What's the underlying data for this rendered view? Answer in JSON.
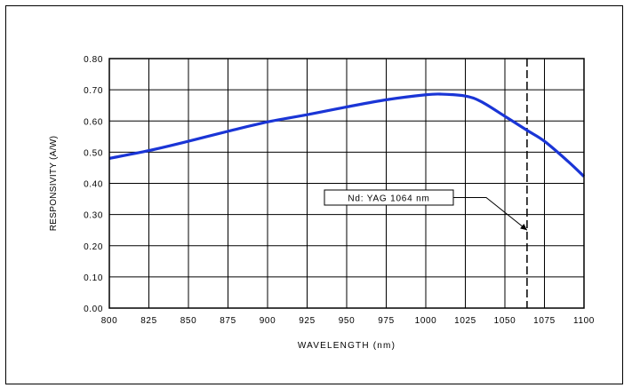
{
  "chart_data": {
    "type": "line",
    "title": "",
    "xlabel": "WAVELENGTH (nm)",
    "ylabel": "RESPONSIVITY (A/W)",
    "xlim": [
      800,
      1100
    ],
    "ylim": [
      0,
      0.8
    ],
    "xticks": [
      "800",
      "825",
      "850",
      "875",
      "900",
      "925",
      "950",
      "975",
      "1000",
      "1025",
      "1050",
      "1075",
      "1100"
    ],
    "yticks": [
      "0.00",
      "0.10",
      "0.20",
      "0.30",
      "0.40",
      "0.50",
      "0.60",
      "0.70",
      "0.80"
    ],
    "grid": true,
    "series": [
      {
        "color": "#1a35d6",
        "x": [
          800,
          825,
          850,
          875,
          900,
          925,
          950,
          975,
          1000,
          1010,
          1025,
          1035,
          1050,
          1064,
          1075,
          1090,
          1100
        ],
        "y": [
          0.48,
          0.505,
          0.535,
          0.567,
          0.597,
          0.62,
          0.645,
          0.668,
          0.684,
          0.686,
          0.68,
          0.662,
          0.615,
          0.57,
          0.535,
          0.47,
          0.422
        ]
      }
    ],
    "reference_line": {
      "x": 1064,
      "style": "dashed"
    },
    "annotations": [
      {
        "text": "Nd: YAG 1064 nm",
        "points_to": {
          "x": 1064,
          "y": 0.25
        }
      }
    ]
  }
}
